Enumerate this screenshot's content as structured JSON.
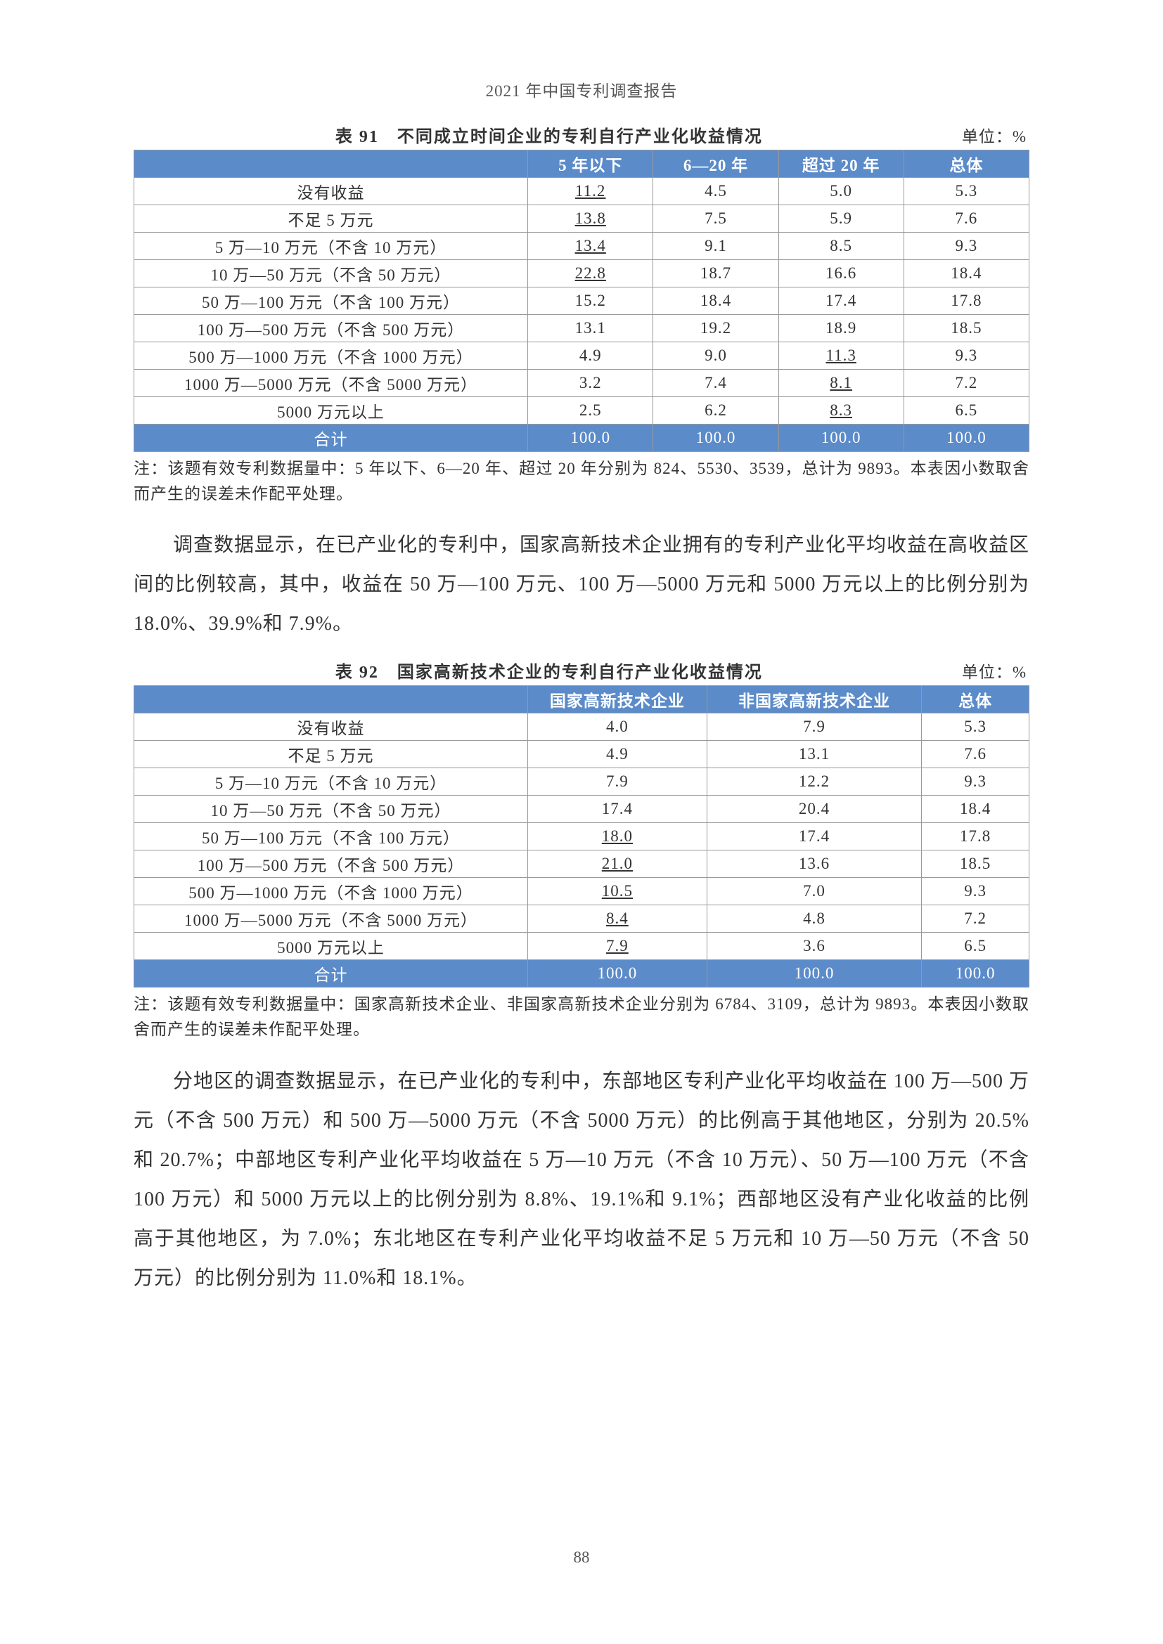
{
  "header": "2021 年中国专利调查报告",
  "page_number": "88",
  "table91": {
    "caption": "表 91　不同成立时间企业的专利自行产业化收益情况",
    "unit": "单位：%",
    "columns": [
      "",
      "5 年以下",
      "6—20 年",
      "超过 20 年",
      "总体"
    ],
    "col_widths": [
      "44%",
      "14%",
      "14%",
      "14%",
      "14%"
    ],
    "rows": [
      {
        "label": "没有收益",
        "vals": [
          {
            "v": "11.2",
            "u": true
          },
          {
            "v": "4.5"
          },
          {
            "v": "5.0"
          },
          {
            "v": "5.3"
          }
        ]
      },
      {
        "label": "不足 5 万元",
        "vals": [
          {
            "v": "13.8",
            "u": true
          },
          {
            "v": "7.5"
          },
          {
            "v": "5.9"
          },
          {
            "v": "7.6"
          }
        ]
      },
      {
        "label": "5 万—10 万元（不含 10 万元）",
        "vals": [
          {
            "v": "13.4",
            "u": true
          },
          {
            "v": "9.1"
          },
          {
            "v": "8.5"
          },
          {
            "v": "9.3"
          }
        ]
      },
      {
        "label": "10 万—50 万元（不含 50 万元）",
        "vals": [
          {
            "v": "22.8",
            "u": true
          },
          {
            "v": "18.7"
          },
          {
            "v": "16.6"
          },
          {
            "v": "18.4"
          }
        ]
      },
      {
        "label": "50 万—100 万元（不含 100 万元）",
        "vals": [
          {
            "v": "15.2"
          },
          {
            "v": "18.4"
          },
          {
            "v": "17.4"
          },
          {
            "v": "17.8"
          }
        ]
      },
      {
        "label": "100 万—500 万元（不含 500 万元）",
        "vals": [
          {
            "v": "13.1"
          },
          {
            "v": "19.2"
          },
          {
            "v": "18.9"
          },
          {
            "v": "18.5"
          }
        ]
      },
      {
        "label": "500 万—1000 万元（不含 1000 万元）",
        "vals": [
          {
            "v": "4.9"
          },
          {
            "v": "9.0"
          },
          {
            "v": "11.3",
            "u": true
          },
          {
            "v": "9.3"
          }
        ]
      },
      {
        "label": "1000 万—5000 万元（不含 5000 万元）",
        "vals": [
          {
            "v": "3.2"
          },
          {
            "v": "7.4"
          },
          {
            "v": "8.1",
            "u": true
          },
          {
            "v": "7.2"
          }
        ]
      },
      {
        "label": "5000 万元以上",
        "vals": [
          {
            "v": "2.5"
          },
          {
            "v": "6.2"
          },
          {
            "v": "8.3",
            "u": true
          },
          {
            "v": "6.5"
          }
        ]
      }
    ],
    "total": {
      "label": "合计",
      "vals": [
        "100.0",
        "100.0",
        "100.0",
        "100.0"
      ]
    },
    "note": "注：该题有效专利数据量中：5 年以下、6—20 年、超过 20 年分别为 824、5530、3539，总计为 9893。本表因小数取舍而产生的误差未作配平处理。"
  },
  "para1": "调查数据显示，在已产业化的专利中，国家高新技术企业拥有的专利产业化平均收益在高收益区间的比例较高，其中，收益在 50 万—100 万元、100 万—5000 万元和 5000 万元以上的比例分别为 18.0%、39.9%和 7.9%。",
  "table92": {
    "caption": "表 92　国家高新技术企业的专利自行产业化收益情况",
    "unit": "单位：%",
    "columns": [
      "",
      "国家高新技术企业",
      "非国家高新技术企业",
      "总体"
    ],
    "col_widths": [
      "44%",
      "20%",
      "24%",
      "12%"
    ],
    "rows": [
      {
        "label": "没有收益",
        "vals": [
          {
            "v": "4.0"
          },
          {
            "v": "7.9"
          },
          {
            "v": "5.3"
          }
        ]
      },
      {
        "label": "不足 5 万元",
        "vals": [
          {
            "v": "4.9"
          },
          {
            "v": "13.1"
          },
          {
            "v": "7.6"
          }
        ]
      },
      {
        "label": "5 万—10 万元（不含 10 万元）",
        "vals": [
          {
            "v": "7.9"
          },
          {
            "v": "12.2"
          },
          {
            "v": "9.3"
          }
        ]
      },
      {
        "label": "10 万—50 万元（不含 50 万元）",
        "vals": [
          {
            "v": "17.4"
          },
          {
            "v": "20.4"
          },
          {
            "v": "18.4"
          }
        ]
      },
      {
        "label": "50 万—100 万元（不含 100 万元）",
        "vals": [
          {
            "v": "18.0",
            "u": true
          },
          {
            "v": "17.4"
          },
          {
            "v": "17.8"
          }
        ]
      },
      {
        "label": "100 万—500 万元（不含 500 万元）",
        "vals": [
          {
            "v": "21.0",
            "u": true
          },
          {
            "v": "13.6"
          },
          {
            "v": "18.5"
          }
        ]
      },
      {
        "label": "500 万—1000 万元（不含 1000 万元）",
        "vals": [
          {
            "v": "10.5",
            "u": true
          },
          {
            "v": "7.0"
          },
          {
            "v": "9.3"
          }
        ]
      },
      {
        "label": "1000 万—5000 万元（不含 5000 万元）",
        "vals": [
          {
            "v": "8.4",
            "u": true
          },
          {
            "v": "4.8"
          },
          {
            "v": "7.2"
          }
        ]
      },
      {
        "label": "5000 万元以上",
        "vals": [
          {
            "v": "7.9",
            "u": true
          },
          {
            "v": "3.6"
          },
          {
            "v": "6.5"
          }
        ]
      }
    ],
    "total": {
      "label": "合计",
      "vals": [
        "100.0",
        "100.0",
        "100.0"
      ]
    },
    "note": "注：该题有效专利数据量中：国家高新技术企业、非国家高新技术企业分别为 6784、3109，总计为 9893。本表因小数取舍而产生的误差未作配平处理。"
  },
  "para2": "分地区的调查数据显示，在已产业化的专利中，东部地区专利产业化平均收益在 100 万—500 万元（不含 500 万元）和 500 万—5000 万元（不含 5000 万元）的比例高于其他地区，分别为 20.5%和 20.7%；中部地区专利产业化平均收益在 5 万—10 万元（不含 10 万元）、50 万—100 万元（不含 100 万元）和 5000 万元以上的比例分别为 8.8%、19.1%和 9.1%；西部地区没有产业化收益的比例高于其他地区，为 7.0%；东北地区在专利产业化平均收益不足 5 万元和 10 万—50 万元（不含 50 万元）的比例分别为 11.0%和 18.1%。"
}
